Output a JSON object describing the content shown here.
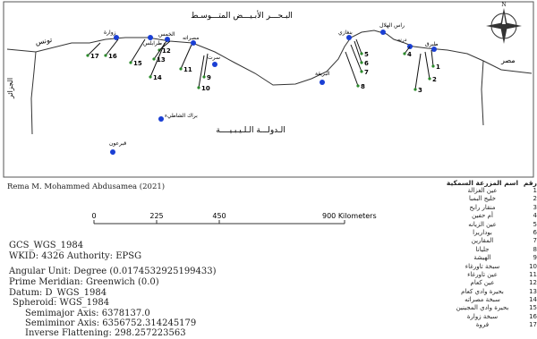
{
  "map": {
    "sea_label": "البـحـــر الأبـيـــض المتـــوسـط",
    "country_label": "الـدولـــة الـلـيـبـيــــة",
    "west_label": "تونس",
    "east_label": "مصر",
    "west_vertical_label": "الجزائر",
    "cities": [
      {
        "name": "زوارة"
      },
      {
        "name": "طرابلس"
      },
      {
        "name": "الخمس"
      },
      {
        "name": "مصراته"
      },
      {
        "name": "سرت"
      },
      {
        "name": "راس الهلال"
      },
      {
        "name": "درنه"
      },
      {
        "name": "بنغازي"
      },
      {
        "name": "البريقة"
      },
      {
        "name": "طبرق"
      },
      {
        "name": "براك الشاطيء"
      },
      {
        "name": "قبرعون"
      }
    ],
    "site_numbers": [
      "1",
      "2",
      "3",
      "4",
      "5",
      "6",
      "7",
      "8",
      "9",
      "10",
      "11",
      "12",
      "13",
      "14",
      "15",
      "16",
      "17"
    ]
  },
  "credit": "Rema M. Mohammed Abdusamea (2021)",
  "scale": {
    "ticks": [
      "0",
      "225",
      "450",
      "900 Kilometers"
    ]
  },
  "metadata": {
    "gcs": "GCS_WGS_1984",
    "wkid": "WKID: 4326 Authority: EPSG",
    "angular": "Angular Unit: Degree (0.0174532925199433)",
    "meridian": "Prime Meridian: Greenwich (0.0)",
    "datum": "Datum: D_WGS_1984",
    "spheroid": "Spheroid: WGS_1984",
    "semimajor": "Semimajor Axis: 6378137.0",
    "semiminor": "Semiminor Axis: 6356752.314245179",
    "flattening": "Inverse Flattening: 298.257223563"
  },
  "legend": {
    "header_num": "رقم",
    "header_name": "اسم المزرعة السمكية",
    "rows": [
      {
        "num": "1",
        "name": "عين الغزالة"
      },
      {
        "num": "2",
        "name": "خليج البمبا"
      },
      {
        "num": "3",
        "name": "منقار رابح"
      },
      {
        "num": "4",
        "name": "أم حفين"
      },
      {
        "num": "5",
        "name": "عين الزيانه"
      },
      {
        "num": "6",
        "name": "بوداريرا"
      },
      {
        "num": "7",
        "name": "المقارين"
      },
      {
        "num": "8",
        "name": "جليانا"
      },
      {
        "num": "9",
        "name": "الهيشة"
      },
      {
        "num": "10",
        "name": "سبخة تاورغاء"
      },
      {
        "num": "11",
        "name": "عين تاورغاء"
      },
      {
        "num": "12",
        "name": "عين كعام"
      },
      {
        "num": "13",
        "name": "بحيرة وادي كعام"
      },
      {
        "num": "14",
        "name": "سبخة مصراته"
      },
      {
        "num": "15",
        "name": "بحيرة وادي المجينين"
      },
      {
        "num": "16",
        "name": "سبخة زوارة"
      },
      {
        "num": "17",
        "name": "فروة"
      }
    ]
  }
}
